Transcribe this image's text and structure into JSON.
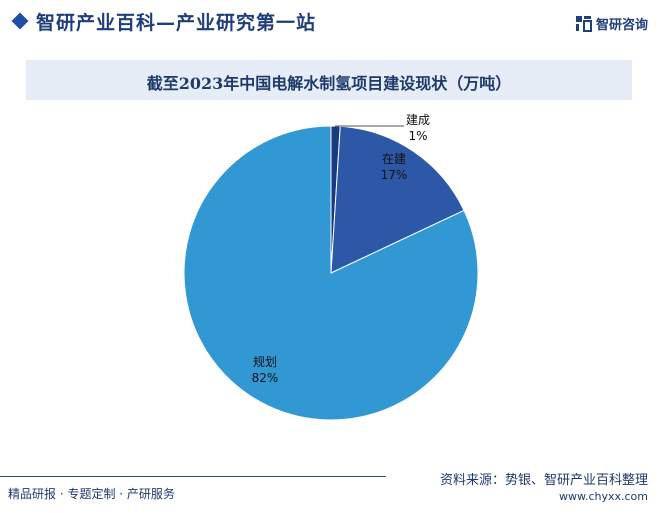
{
  "header": {
    "site_title": "智研产业百科—产业研究第一站",
    "logo_text": "智研咨询"
  },
  "chart_data": {
    "type": "pie",
    "title": "截至2023年中国电解水制氢项目建设现状（万吨）",
    "categories": [
      "建成",
      "在建",
      "规划"
    ],
    "values": [
      1,
      17,
      82
    ],
    "value_labels": [
      "1%",
      "17%",
      "82%"
    ],
    "colors": [
      "#163a7d",
      "#2d58a8",
      "#3198d4"
    ],
    "legend": "none"
  },
  "footer": {
    "left_text": "精品研报 · 专题定制 · 产研服务",
    "source": "资料来源：势银、智研产业百科整理",
    "url": "www.chyxx.com"
  }
}
